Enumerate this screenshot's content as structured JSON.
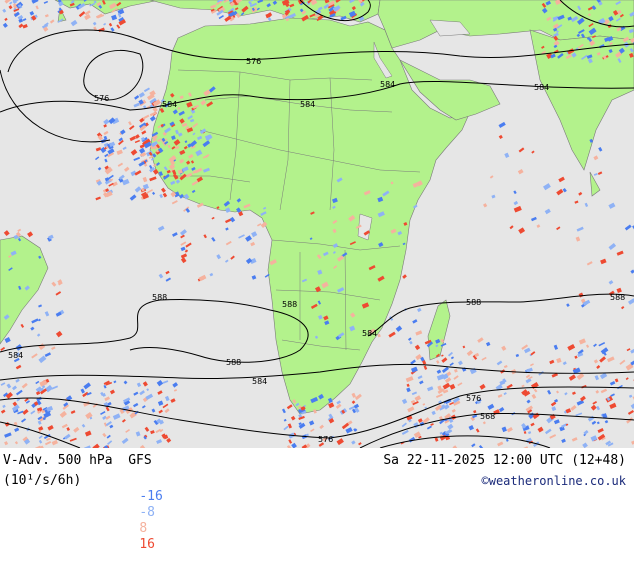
{
  "map": {
    "colors": {
      "ocean": "#e6e6e6",
      "land": "#b3f28c",
      "border": "#7a7a7a",
      "contour": "#000000",
      "neg_strong": "#4a7df0",
      "neg_weak": "#8fb2f5",
      "pos_weak": "#f5b29e",
      "pos_strong": "#ee4a32"
    },
    "contour_labels": [
      "576",
      "576",
      "584",
      "584",
      "584",
      "584",
      "588",
      "588",
      "588",
      "588",
      "588",
      "584",
      "584",
      "584",
      "576",
      "568",
      "576"
    ]
  },
  "footer": {
    "title_left": "V-Adv. 500 hPa  GFS",
    "title_right": "Sa 22-11-2025 12:00 UTC (12+48)",
    "units": "(10¹/s/6h)",
    "legend": [
      {
        "label": "-16",
        "color": "#4a7df0"
      },
      {
        "label": "-8",
        "color": "#8fb2f5"
      },
      {
        "label": "8",
        "color": "#f5b29e"
      },
      {
        "label": "16",
        "color": "#ee4a32"
      }
    ],
    "credit": "©weatheronline.co.uk"
  }
}
